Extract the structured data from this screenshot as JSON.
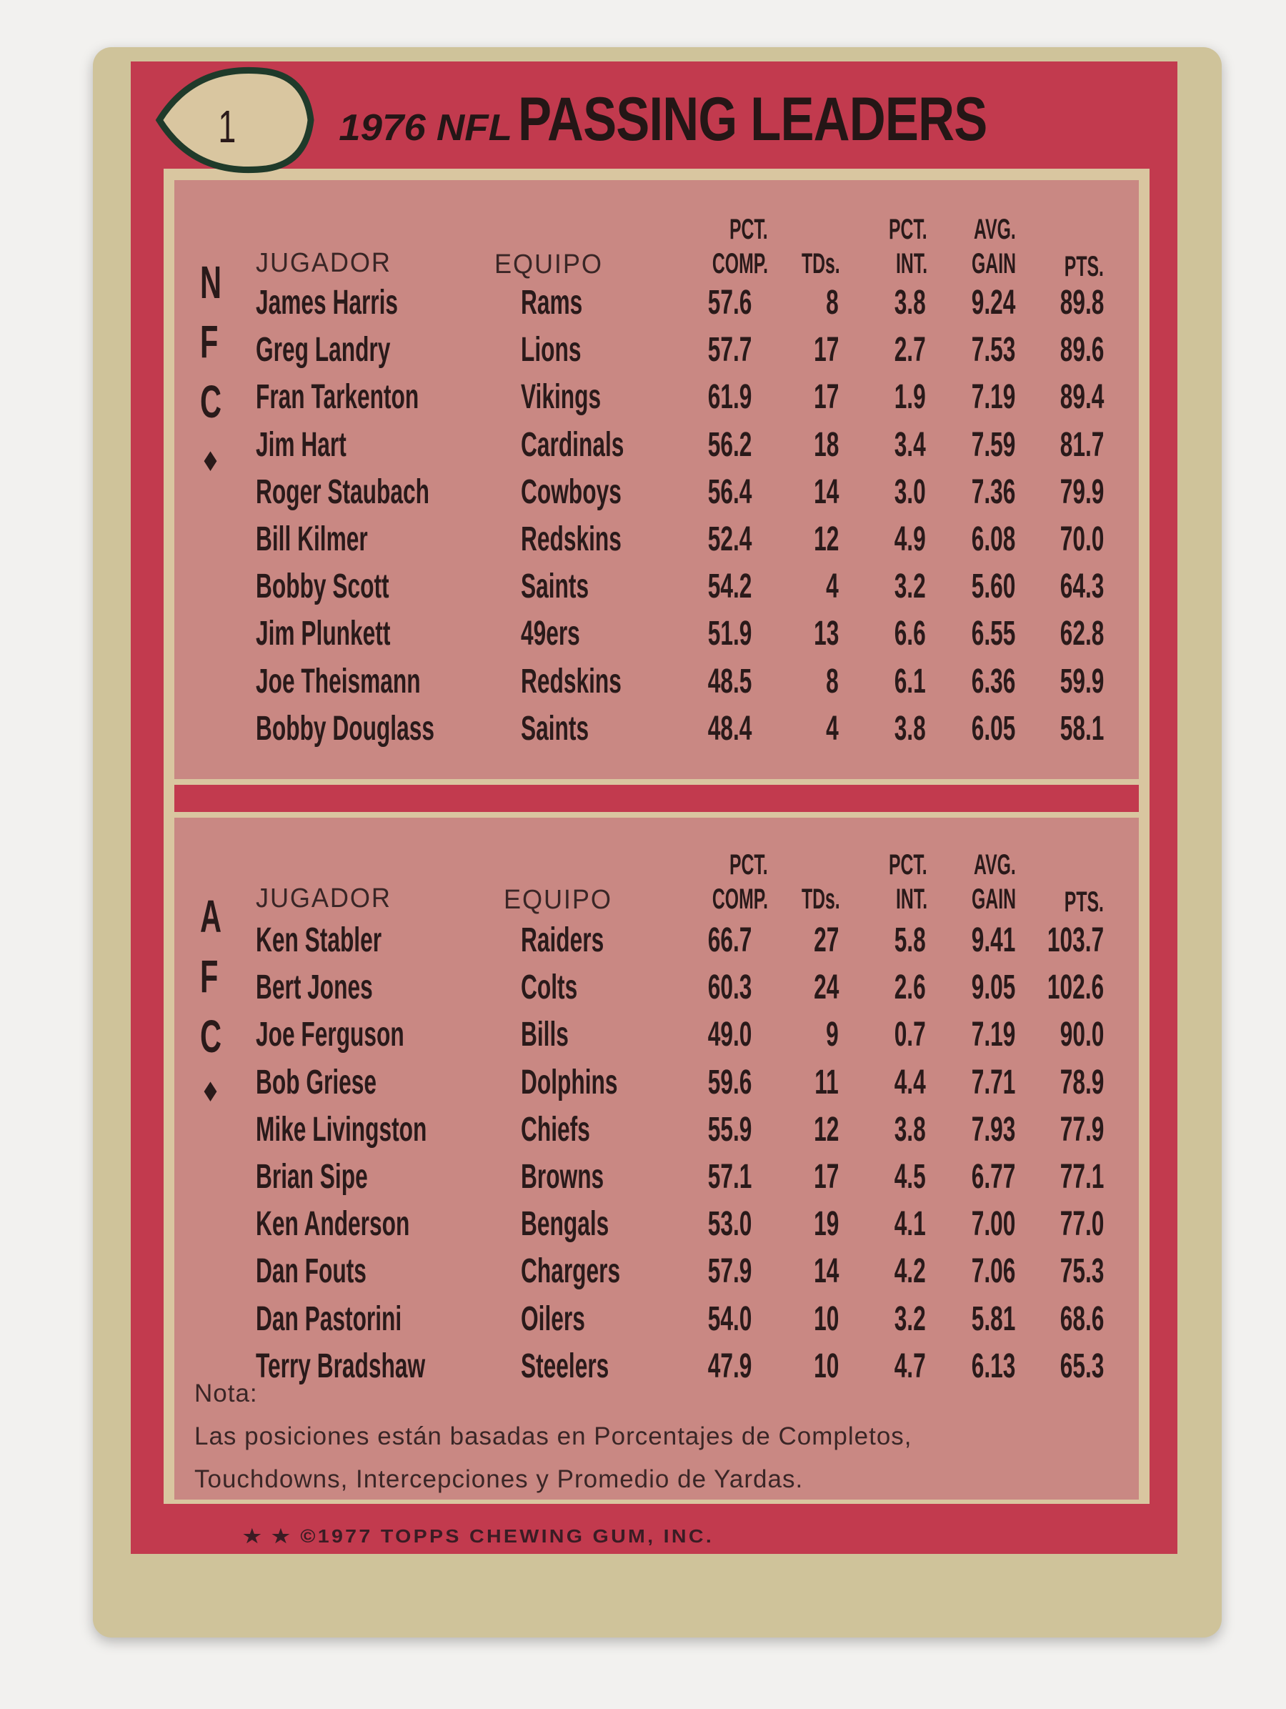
{
  "card": {
    "number": "1",
    "title_prefix": "1976 NFL",
    "title_main": "PASSING LEADERS",
    "colors": {
      "frame": "#c23a4e",
      "panel": "#c98883",
      "card": "#cfc39a"
    },
    "headers": {
      "player": "JUGADOR",
      "team": "EQUIPO",
      "comp_top": "PCT.",
      "comp_bottom": "COMP.",
      "tds": "TDs.",
      "int_top": "PCT.",
      "int_bottom": "INT.",
      "gain_top": "AVG.",
      "gain_bottom": "GAIN",
      "pts": "PTS."
    },
    "nfc": {
      "label": [
        "N",
        "F",
        "C",
        "◆"
      ],
      "rows": [
        {
          "player": "James Harris",
          "team": "Rams",
          "comp": "57.6",
          "tds": "8",
          "int": "3.8",
          "gain": "9.24",
          "pts": "89.8"
        },
        {
          "player": "Greg Landry",
          "team": "Lions",
          "comp": "57.7",
          "tds": "17",
          "int": "2.7",
          "gain": "7.53",
          "pts": "89.6"
        },
        {
          "player": "Fran Tarkenton",
          "team": "Vikings",
          "comp": "61.9",
          "tds": "17",
          "int": "1.9",
          "gain": "7.19",
          "pts": "89.4"
        },
        {
          "player": "Jim Hart",
          "team": "Cardinals",
          "comp": "56.2",
          "tds": "18",
          "int": "3.4",
          "gain": "7.59",
          "pts": "81.7"
        },
        {
          "player": "Roger Staubach",
          "team": "Cowboys",
          "comp": "56.4",
          "tds": "14",
          "int": "3.0",
          "gain": "7.36",
          "pts": "79.9"
        },
        {
          "player": "Bill Kilmer",
          "team": "Redskins",
          "comp": "52.4",
          "tds": "12",
          "int": "4.9",
          "gain": "6.08",
          "pts": "70.0"
        },
        {
          "player": "Bobby Scott",
          "team": "Saints",
          "comp": "54.2",
          "tds": "4",
          "int": "3.2",
          "gain": "5.60",
          "pts": "64.3"
        },
        {
          "player": "Jim Plunkett",
          "team": "49ers",
          "comp": "51.9",
          "tds": "13",
          "int": "6.6",
          "gain": "6.55",
          "pts": "62.8"
        },
        {
          "player": "Joe Theismann",
          "team": "Redskins",
          "comp": "48.5",
          "tds": "8",
          "int": "6.1",
          "gain": "6.36",
          "pts": "59.9"
        },
        {
          "player": "Bobby Douglass",
          "team": "Saints",
          "comp": "48.4",
          "tds": "4",
          "int": "3.8",
          "gain": "6.05",
          "pts": "58.1"
        }
      ]
    },
    "afc": {
      "label": [
        "A",
        "F",
        "C",
        "◆"
      ],
      "rows": [
        {
          "player": "Ken Stabler",
          "team": "Raiders",
          "comp": "66.7",
          "tds": "27",
          "int": "5.8",
          "gain": "9.41",
          "pts": "103.7"
        },
        {
          "player": "Bert Jones",
          "team": "Colts",
          "comp": "60.3",
          "tds": "24",
          "int": "2.6",
          "gain": "9.05",
          "pts": "102.6"
        },
        {
          "player": "Joe Ferguson",
          "team": "Bills",
          "comp": "49.0",
          "tds": "9",
          "int": "0.7",
          "gain": "7.19",
          "pts": "90.0"
        },
        {
          "player": "Bob Griese",
          "team": "Dolphins",
          "comp": "59.6",
          "tds": "11",
          "int": "4.4",
          "gain": "7.71",
          "pts": "78.9"
        },
        {
          "player": "Mike Livingston",
          "team": "Chiefs",
          "comp": "55.9",
          "tds": "12",
          "int": "3.8",
          "gain": "7.93",
          "pts": "77.9"
        },
        {
          "player": "Brian Sipe",
          "team": "Browns",
          "comp": "57.1",
          "tds": "17",
          "int": "4.5",
          "gain": "6.77",
          "pts": "77.1"
        },
        {
          "player": "Ken Anderson",
          "team": "Bengals",
          "comp": "53.0",
          "tds": "19",
          "int": "4.1",
          "gain": "7.00",
          "pts": "77.0"
        },
        {
          "player": "Dan Fouts",
          "team": "Chargers",
          "comp": "57.9",
          "tds": "14",
          "int": "4.2",
          "gain": "7.06",
          "pts": "75.3"
        },
        {
          "player": "Dan Pastorini",
          "team": "Oilers",
          "comp": "54.0",
          "tds": "10",
          "int": "3.2",
          "gain": "5.81",
          "pts": "68.6"
        },
        {
          "player": "Terry Bradshaw",
          "team": "Steelers",
          "comp": "47.9",
          "tds": "10",
          "int": "4.7",
          "gain": "6.13",
          "pts": "65.3"
        }
      ]
    },
    "note": {
      "label": "Nota:",
      "line1": "Las posiciones están basadas en Porcentajes de Completos,",
      "line2": "Touchdowns, Intercepciones y Promedio de Yardas."
    },
    "copyright": "★ ★ ©1977 TOPPS CHEWING GUM, INC."
  }
}
